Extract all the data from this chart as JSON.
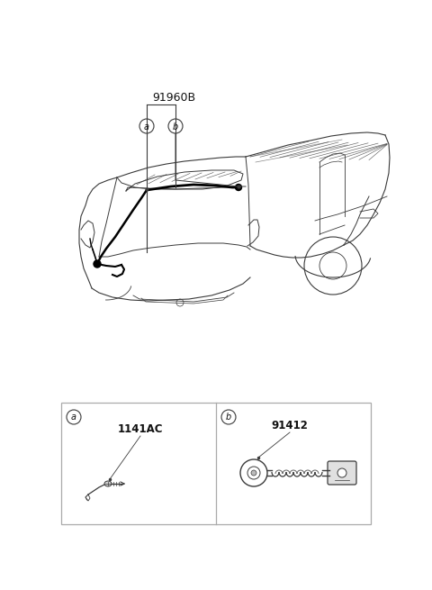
{
  "bg_color": "#ffffff",
  "fig_width": 4.8,
  "fig_height": 6.55,
  "dpi": 100,
  "title_label": "91960B",
  "part_a_label": "1141AC",
  "part_b_label": "91412",
  "circle_a_label": "a",
  "circle_b_label": "b",
  "line_color": "#3a3a3a",
  "text_color": "#111111",
  "box_edge_color": "#aaaaaa",
  "harness_color": "#000000"
}
